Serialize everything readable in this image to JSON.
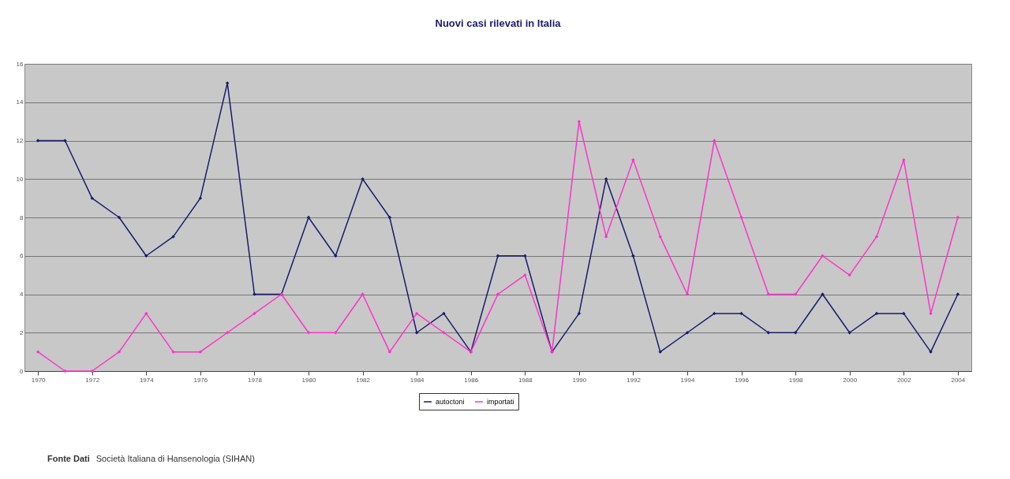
{
  "chart_data": {
    "type": "line",
    "title": "Nuovi casi rilevati in Italia",
    "categories": [
      "1970",
      null,
      "1972",
      null,
      "1974",
      null,
      "1976",
      null,
      "1978",
      null,
      "1980",
      null,
      "1982",
      null,
      "1984",
      null,
      "1986",
      null,
      "1988",
      null,
      "1990",
      null,
      "1992",
      null,
      "1994",
      null,
      "1996",
      null,
      "1998",
      null,
      "2000",
      null,
      "2002",
      null,
      "2004"
    ],
    "series": [
      {
        "name": "autoctoni",
        "color": "#1c1a6e",
        "values": [
          12,
          12,
          9,
          8,
          6,
          7,
          9,
          15,
          4,
          4,
          8,
          6,
          10,
          8,
          2,
          3,
          1,
          6,
          6,
          1,
          3,
          10,
          6,
          1,
          2,
          3,
          3,
          2,
          2,
          4,
          2,
          3,
          3,
          1,
          4
        ]
      },
      {
        "name": "importati",
        "color": "#ff33cc",
        "values": [
          1,
          0,
          0,
          1,
          3,
          1,
          1,
          2,
          3,
          4,
          2,
          2,
          4,
          1,
          3,
          2,
          1,
          4,
          5,
          1,
          13,
          7,
          11,
          7,
          4,
          12,
          8,
          4,
          4,
          6,
          5,
          7,
          11,
          3,
          8
        ]
      }
    ],
    "ylim": [
      0,
      16
    ],
    "yticks": [
      0,
      2,
      4,
      6,
      8,
      10,
      12,
      14,
      16
    ],
    "grid": "y",
    "legend": "bottom",
    "marker": "diamond",
    "line_style": "solid",
    "annotations": [
      "Fonte Dati",
      "Società Italiana di Hansenologia (SIHAN)"
    ]
  }
}
